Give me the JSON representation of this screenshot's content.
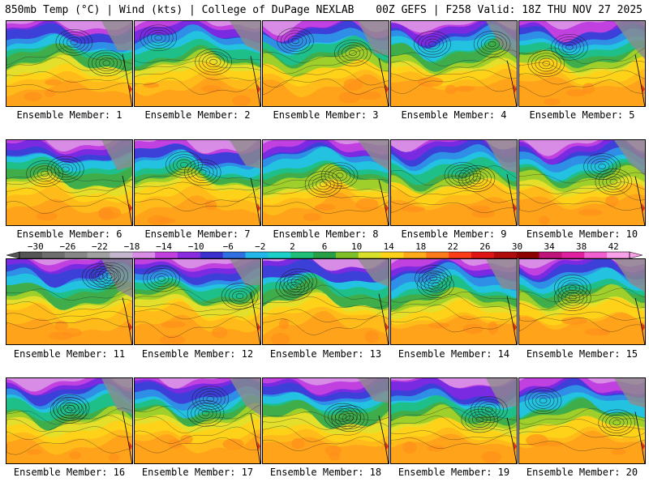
{
  "header": {
    "left": "850mb Temp (°C) | Wind (kts) | College of DuPage NEXLAB",
    "right": "00Z GEFS | F258 Valid: 18Z THU NOV 27 2025"
  },
  "label_prefix": "Ensemble Member: ",
  "members": [
    {
      "number": "1"
    },
    {
      "number": "2"
    },
    {
      "number": "3"
    },
    {
      "number": "4"
    },
    {
      "number": "5"
    },
    {
      "number": "6"
    },
    {
      "number": "7"
    },
    {
      "number": "8"
    },
    {
      "number": "9"
    },
    {
      "number": "10"
    },
    {
      "number": "11"
    },
    {
      "number": "12"
    },
    {
      "number": "13"
    },
    {
      "number": "14"
    },
    {
      "number": "15"
    },
    {
      "number": "16"
    },
    {
      "number": "17"
    },
    {
      "number": "18"
    },
    {
      "number": "19"
    },
    {
      "number": "20"
    }
  ],
  "colorbar": {
    "unit": "°C",
    "min": -32,
    "max": 44,
    "tick_labels": [
      "−30",
      "−26",
      "−22",
      "−18",
      "−14",
      "−10",
      "−6",
      "−2",
      "2",
      "6",
      "10",
      "14",
      "18",
      "22",
      "26",
      "30",
      "34",
      "38",
      "42"
    ],
    "tick_values": [
      -30,
      -26,
      -22,
      -18,
      -14,
      -10,
      -6,
      -2,
      2,
      6,
      10,
      14,
      18,
      22,
      26,
      30,
      34,
      38,
      42
    ],
    "colors": [
      "#555555",
      "#6e6e6e",
      "#878787",
      "#a0a0a0",
      "#c4b6cc",
      "#d98ce6",
      "#c040e0",
      "#8a2be2",
      "#3c2fd0",
      "#2f6fe0",
      "#23b8e8",
      "#1ccfc8",
      "#1fbf7a",
      "#2aa046",
      "#7fbf2a",
      "#d8e02a",
      "#ffd21a",
      "#ffaa1a",
      "#ff7a1a",
      "#ff3c1a",
      "#e01414",
      "#b00c0c",
      "#8c0000",
      "#c0147a",
      "#e020a0",
      "#f060d0",
      "#f8a0e8"
    ]
  }
}
